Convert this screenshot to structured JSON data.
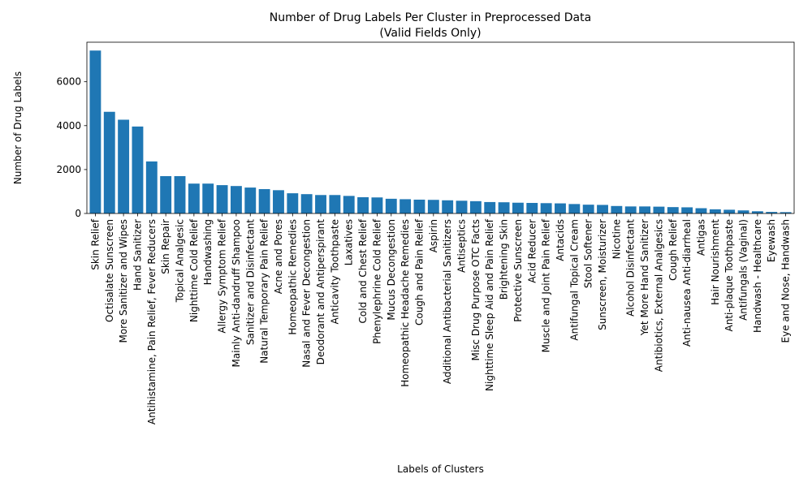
{
  "chart_data": {
    "type": "bar",
    "title": "Number of Drug Labels Per Cluster in Preprocessed Data",
    "subtitle": "(Valid Fields Only)",
    "xlabel": "Labels of Clusters",
    "ylabel": "Number of Drug Labels",
    "ylim": [
      0,
      7800
    ],
    "yticks": [
      0,
      2000,
      4000,
      6000
    ],
    "grid": false,
    "colors": {
      "bar": "#1f77b4"
    },
    "categories": [
      "Skin Relief",
      "Octisalate Sunscreen",
      "More Sanitizer and Wipes",
      "Hand Sanitizer",
      "Antihistamine, Pain Relief, Fever Reducers",
      "Skin Repair",
      "Topical Analgesic",
      "Nighttime Cold Relief",
      "Handwashing",
      "Allergy Symptom Relief",
      "Mainly Anti-dandruff Shampoo",
      "Sanitizer and Disinfectant",
      "Natural Temporary Pain Relief",
      "Acne and Pores",
      "Homeopathic Remedies",
      "Nasal and Fever Decongestion",
      "Deodorant and Antiperspirant",
      "Anticavity Toothpaste",
      "Laxatives",
      "Cold and Chest Relief",
      "Phenylephrine Cold Relief",
      "Mucus Decongestion",
      "Homeopathic Headache Remedies",
      "Cough and Pain Relief",
      "Aspirin",
      "Additional Antibacterial Sanitizers",
      "Antiseptics",
      "Misc Drug Purpose OTC Facts",
      "Nighttime Sleep Aid and Pain Relief",
      "Brightening Skin",
      "Protective Sunscreen",
      "Acid Reducer",
      "Muscle and Joint Pain Relief",
      "Antacids",
      "Antifungal Topical Cream",
      "Stool Softener",
      "Sunscreen, Moisturizer",
      "Nicotine",
      "Alcohol Disinfectant",
      "Yet More Hand Sanitizer",
      "Antibiotics, External Analgesics",
      "Cough Relief",
      "Anti-nausea Anti-diarrheal",
      "Antigas",
      "Hair Nourishment",
      "Anti-plaque Toothpaste",
      "Antifungals (Vaginal)",
      "Handwash - Healthcare",
      "Eyewash",
      "Eye and Nose, Handwash"
    ],
    "values": [
      7420,
      4630,
      4270,
      3960,
      2370,
      1700,
      1700,
      1360,
      1360,
      1290,
      1250,
      1180,
      1110,
      1060,
      920,
      880,
      840,
      840,
      800,
      740,
      730,
      670,
      650,
      630,
      620,
      600,
      580,
      560,
      520,
      510,
      490,
      480,
      470,
      460,
      430,
      400,
      390,
      340,
      320,
      320,
      310,
      290,
      280,
      240,
      190,
      170,
      140,
      100,
      70,
      60
    ]
  }
}
